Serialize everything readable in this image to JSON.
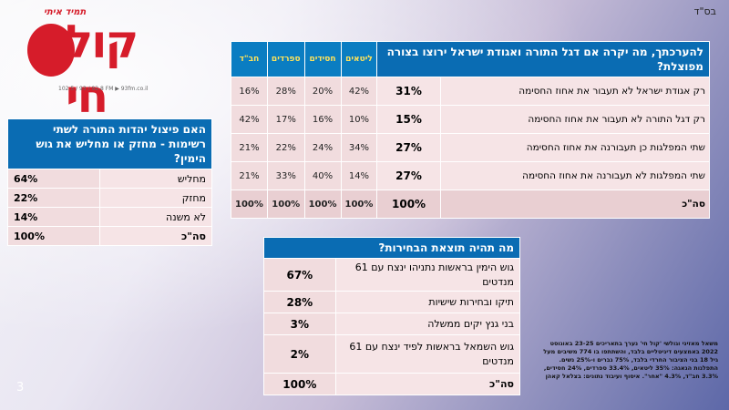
{
  "header": {
    "bsd": "בס\"ד",
    "slide_number": "3"
  },
  "logo": {
    "tagline": "תמיד איתי",
    "word": "קול חי",
    "frequencies": "102.5 / 93 / 92.8 FM ▶ 93fm.co.il"
  },
  "main_table": {
    "title": "להערכתך, מה יקרה אם דגל התורה ואגודת ישראל ירוצו בצורה מפוצלת?",
    "columns": [
      "ליטאים",
      "חסידים",
      "ספרדים",
      "חב\"ד"
    ],
    "rows": [
      {
        "label": "רק אגודת ישראל לא תעבור את אחוז החסימה",
        "total": "31%",
        "values": [
          "42%",
          "20%",
          "28%",
          "16%"
        ]
      },
      {
        "label": "רק דגל התורה לא תעבור את אחוז החסימה",
        "total": "15%",
        "values": [
          "10%",
          "16%",
          "17%",
          "42%"
        ]
      },
      {
        "label": "שתי המפלגות כן תעבורנה את אחוז החסימה",
        "total": "27%",
        "values": [
          "34%",
          "24%",
          "22%",
          "21%"
        ]
      },
      {
        "label": "שתי המפלגות לא תעבורנה את אחוז החסימה",
        "total": "27%",
        "values": [
          "14%",
          "40%",
          "33%",
          "21%"
        ]
      }
    ],
    "sum": {
      "label": "סה\"כ",
      "total": "100%",
      "values": [
        "100%",
        "100%",
        "100%",
        "100%"
      ]
    }
  },
  "split_table": {
    "title": "האם פיצול יהדות התורה לשתי רשימות - מחזק או מחליש את גוש הימין?",
    "rows": [
      {
        "label": "מחליש",
        "value": "64%"
      },
      {
        "label": "מחזק",
        "value": "22%"
      },
      {
        "label": "לא משנה",
        "value": "14%"
      }
    ],
    "sum": {
      "label": "סה\"כ",
      "value": "100%"
    }
  },
  "result_table": {
    "title": "מה תהיה תוצאת הבחירות?",
    "rows": [
      {
        "label": "גוש הימין בראשות נתניהו ינצח עם 61 מנדטים",
        "value": "67%"
      },
      {
        "label": "תיקו ובחירות שישיות",
        "value": "28%"
      },
      {
        "label": "בני גנץ יקים ממשלה",
        "value": "3%"
      },
      {
        "label": "גוש השמאל בראשות לפיד ינצח עם 61 מנדטים",
        "value": "2%"
      }
    ],
    "sum": {
      "label": "סה\"כ",
      "value": "100%"
    }
  },
  "footnote": "משאל מאזיני וגולשי 'קול חי' נערך בתאריכים 23-25 באוגוסט 2022 באמצעים דיגיטליים בלבד, והשתתפו בו 774 משיבים מעל גיל 18 בני הציבור החרדי בלבד, 75% גברים ו-25% נשים. התפלגות הגאגה: 35% ליטאים, 33.4% ספרדים, 24% חסידים, 3.3% חב\"ד, 4.3% \"אחר\". איסוף ועיבוד נתונים: בצלאל קאהן",
  "colors": {
    "header_blue": "#0a6cb3",
    "column_header_text": "#ffe35a",
    "row_pink": "#f6e4e6",
    "logo_red": "#d61c2a"
  }
}
